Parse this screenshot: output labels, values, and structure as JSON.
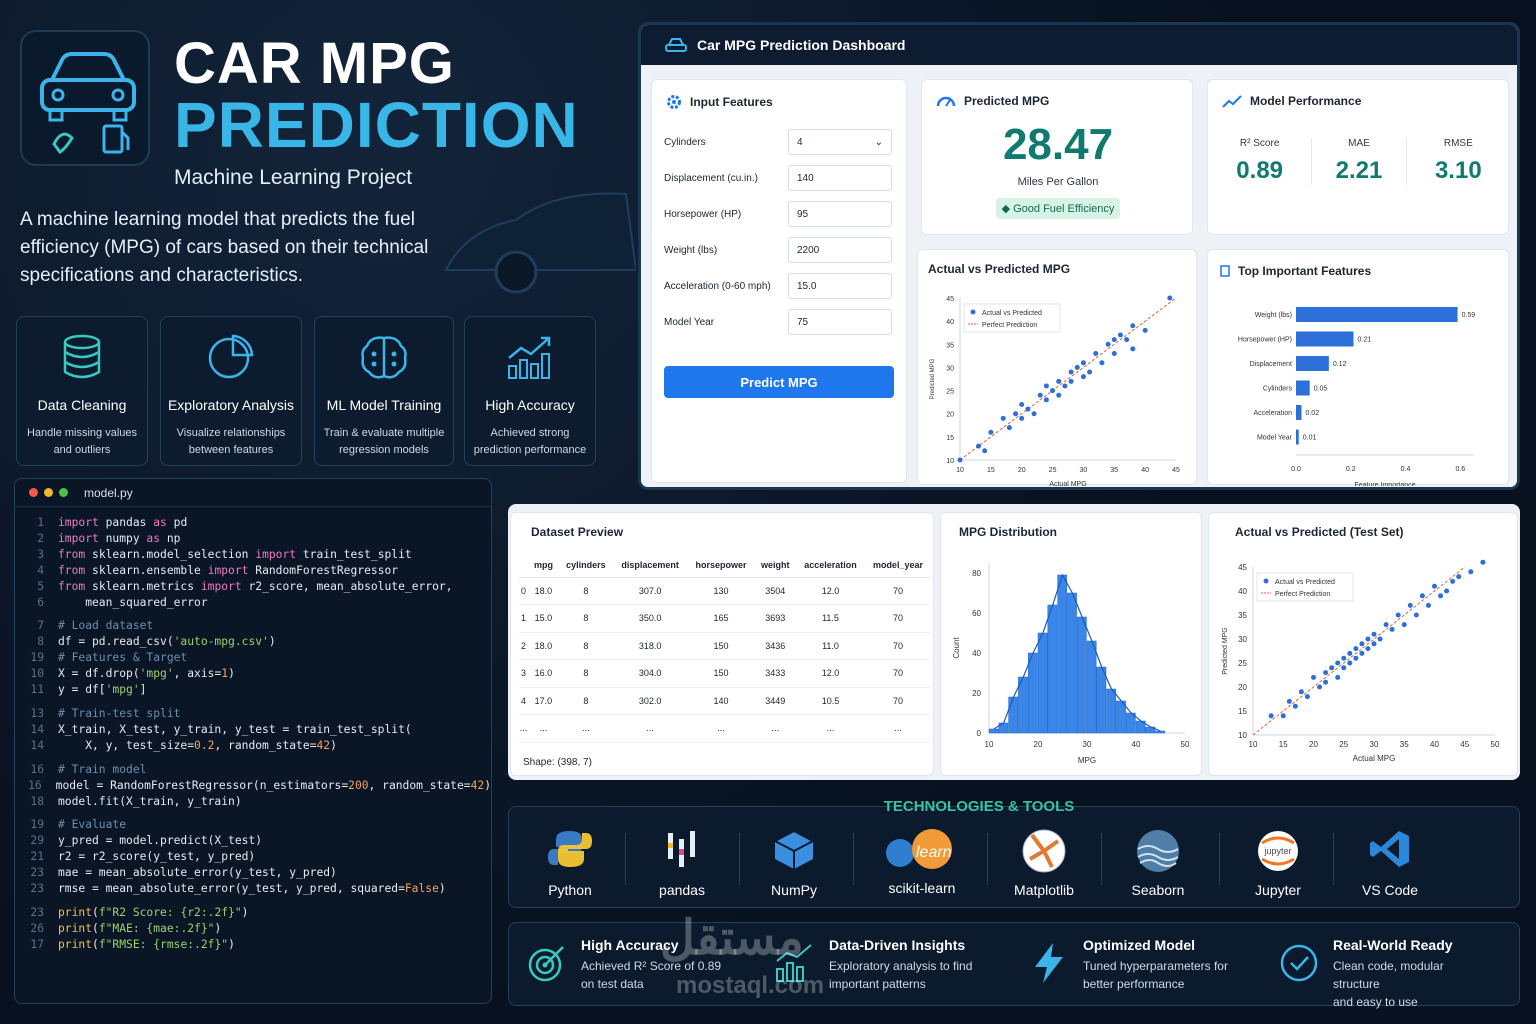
{
  "hero": {
    "title_line1": "CAR MPG",
    "title_line2": "PREDICTION",
    "subtitle": "Machine Learning Project",
    "description": "A machine learning model that predicts the fuel efficiency (MPG) of cars based on their technical specifications and characteristics."
  },
  "features": [
    {
      "icon": "database-icon",
      "title": "Data Cleaning",
      "desc1": "Handle missing values",
      "desc2": "and outliers"
    },
    {
      "icon": "pie-chart-icon",
      "title": "Exploratory Analysis",
      "desc1": "Visualize relationships",
      "desc2": "between features"
    },
    {
      "icon": "brain-icon",
      "title": "ML Model Training",
      "desc1": "Train & evaluate multiple",
      "desc2": "regression models"
    },
    {
      "icon": "growth-chart-icon",
      "title": "High Accuracy",
      "desc1": "Achieved strong",
      "desc2": "prediction performance"
    }
  ],
  "code": {
    "filename": "model.py"
  },
  "dashboard": {
    "title": "Car MPG Prediction Dashboard",
    "input": {
      "title": "Input Features",
      "fields": [
        {
          "label": "Cylinders",
          "value": "4"
        },
        {
          "label": "Displacement (cu.in.)",
          "value": "140"
        },
        {
          "label": "Horsepower (HP)",
          "value": "95"
        },
        {
          "label": "Weight (lbs)",
          "value": "2200"
        },
        {
          "label": "Acceleration (0-60 mph)",
          "value": "15.0"
        },
        {
          "label": "Model Year",
          "value": "75"
        }
      ],
      "button": "Predict MPG"
    },
    "predicted": {
      "title": "Predicted MPG",
      "value": "28.47",
      "unit": "Miles Per Gallon",
      "badge": "Good Fuel Efficiency"
    },
    "performance": {
      "title": "Model Performance",
      "metrics": [
        {
          "k": "R² Score",
          "v": "0.89"
        },
        {
          "k": "MAE",
          "v": "2.21"
        },
        {
          "k": "RMSE",
          "v": "3.10"
        }
      ]
    },
    "scatter_title": "Actual vs Predicted MPG",
    "features_title": "Top Important Features"
  },
  "dataset": {
    "title": "Dataset Preview",
    "columns": [
      "",
      "mpg",
      "cylinders",
      "displacement",
      "horsepower",
      "weight",
      "acceleration",
      "model_year"
    ],
    "rows": [
      [
        "0",
        "18.0",
        "8",
        "307.0",
        "130",
        "3504",
        "12.0",
        "70"
      ],
      [
        "1",
        "15.0",
        "8",
        "350.0",
        "165",
        "3693",
        "11.5",
        "70"
      ],
      [
        "2",
        "18.0",
        "8",
        "318.0",
        "150",
        "3436",
        "11.0",
        "70"
      ],
      [
        "3",
        "16.0",
        "8",
        "304.0",
        "150",
        "3433",
        "12.0",
        "70"
      ],
      [
        "4",
        "17.0",
        "8",
        "302.0",
        "140",
        "3449",
        "10.5",
        "70"
      ],
      [
        "...",
        "...",
        "...",
        "...",
        "...",
        "...",
        "...",
        "..."
      ]
    ],
    "shape": "Shape: (398, 7)"
  },
  "dist_title": "MPG Distribution",
  "test_title": "Actual vs Predicted (Test Set)",
  "tech": {
    "title": "TECHNOLOGIES & TOOLS",
    "items": [
      "Python",
      "pandas",
      "NumPy",
      "scikit-learn",
      "Matplotlib",
      "Seaborn",
      "Jupyter",
      "VS Code"
    ],
    "jupyter_word": "jupyter",
    "learn_word": "learn"
  },
  "highlights": [
    {
      "icon": "target-icon",
      "title": "High Accuracy",
      "d1": "Achieved R² Score of 0.89",
      "d2": "on test data"
    },
    {
      "icon": "chart-icon",
      "title": "Data-Driven Insights",
      "d1": "Exploratory analysis to find",
      "d2": "important patterns"
    },
    {
      "icon": "lightning-icon",
      "title": "Optimized Model",
      "d1": "Tuned hyperparameters for",
      "d2": "better performance"
    },
    {
      "icon": "check-circle-icon",
      "title": "Real-World Ready",
      "d1": "Clean code, modular structure",
      "d2": "and easy to use"
    }
  ],
  "watermark": {
    "arabic": "مستقل",
    "latin": "mostaql.com"
  },
  "chart_data": [
    {
      "type": "scatter",
      "title": "Actual vs Predicted MPG",
      "xlabel": "Actual MPG",
      "ylabel": "Predicted MPG",
      "xlim": [
        10,
        45
      ],
      "ylim": [
        10,
        45
      ],
      "xticks": [
        "10",
        "15",
        "20",
        "25",
        "30",
        "35",
        "40",
        "45"
      ],
      "yticks": [
        "10",
        "15",
        "20",
        "25",
        "30",
        "35",
        "40",
        "45"
      ],
      "legend": [
        "Actual vs Predicted",
        "Perfect Prediction"
      ],
      "points": [
        [
          10,
          10
        ],
        [
          13,
          13
        ],
        [
          14,
          12
        ],
        [
          15,
          16
        ],
        [
          17,
          19
        ],
        [
          18,
          17
        ],
        [
          19,
          20
        ],
        [
          20,
          19
        ],
        [
          20,
          22
        ],
        [
          21,
          21
        ],
        [
          22,
          20
        ],
        [
          23,
          24
        ],
        [
          24,
          23
        ],
        [
          24,
          26
        ],
        [
          25,
          25
        ],
        [
          26,
          24
        ],
        [
          26,
          27
        ],
        [
          27,
          26
        ],
        [
          28,
          29
        ],
        [
          28,
          27
        ],
        [
          29,
          30
        ],
        [
          30,
          28
        ],
        [
          30,
          31
        ],
        [
          31,
          29
        ],
        [
          32,
          33
        ],
        [
          33,
          31
        ],
        [
          34,
          35
        ],
        [
          35,
          33
        ],
        [
          35,
          36
        ],
        [
          36,
          37
        ],
        [
          37,
          36
        ],
        [
          38,
          34
        ],
        [
          38,
          39
        ],
        [
          40,
          38
        ],
        [
          44,
          45
        ]
      ]
    },
    {
      "type": "bar",
      "title": "Top Important Features",
      "xlabel": "Feature Importance",
      "orientation": "horizontal",
      "categories": [
        "Weight (lbs)",
        "Horsepower (HP)",
        "Displacement",
        "Cylinders",
        "Acceleration",
        "Model Year"
      ],
      "values": [
        0.59,
        0.21,
        0.12,
        0.05,
        0.02,
        0.01
      ],
      "labels": [
        "0.59",
        "0.21",
        "0.12",
        "0.05",
        "0.02",
        "0.01"
      ],
      "xticks": [
        "0.0",
        "0.2",
        "0.4",
        "0.6"
      ],
      "xlim": [
        0,
        0.65
      ]
    },
    {
      "type": "bar",
      "title": "MPG Distribution",
      "xlabel": "MPG",
      "ylabel": "Count",
      "xlim": [
        10,
        50
      ],
      "ylim": [
        0,
        85
      ],
      "xticks": [
        "10",
        "20",
        "30",
        "40",
        "50"
      ],
      "yticks": [
        "0",
        "20",
        "40",
        "60",
        "80"
      ],
      "bins": [
        [
          10,
          12
        ],
        [
          12,
          14
        ],
        [
          14,
          16
        ],
        [
          16,
          18
        ],
        [
          18,
          20
        ],
        [
          20,
          22
        ],
        [
          22,
          24
        ],
        [
          24,
          26
        ],
        [
          26,
          28
        ],
        [
          28,
          30
        ],
        [
          30,
          32
        ],
        [
          32,
          34
        ],
        [
          34,
          36
        ],
        [
          36,
          38
        ],
        [
          38,
          40
        ],
        [
          40,
          42
        ],
        [
          42,
          44
        ],
        [
          44,
          46
        ]
      ],
      "values": [
        2,
        5,
        18,
        28,
        40,
        50,
        64,
        79,
        70,
        58,
        46,
        33,
        22,
        16,
        10,
        6,
        3,
        1
      ]
    },
    {
      "type": "scatter",
      "title": "Actual vs Predicted (Test Set)",
      "xlabel": "Actual MPG",
      "ylabel": "Predicted MPG",
      "xlim": [
        10,
        50
      ],
      "ylim": [
        10,
        45
      ],
      "xticks": [
        "10",
        "15",
        "20",
        "25",
        "30",
        "35",
        "40",
        "45",
        "50"
      ],
      "yticks": [
        "10",
        "15",
        "20",
        "25",
        "30",
        "35",
        "40",
        "45"
      ],
      "legend": [
        "Actual vs Predicted",
        "Perfect Prediction"
      ],
      "points": [
        [
          13,
          14
        ],
        [
          15,
          14
        ],
        [
          16,
          17
        ],
        [
          17,
          16
        ],
        [
          18,
          19
        ],
        [
          19,
          18
        ],
        [
          20,
          22
        ],
        [
          21,
          20
        ],
        [
          22,
          23
        ],
        [
          22,
          21
        ],
        [
          23,
          24
        ],
        [
          24,
          22
        ],
        [
          24,
          25
        ],
        [
          25,
          26
        ],
        [
          25,
          24
        ],
        [
          26,
          27
        ],
        [
          26,
          25
        ],
        [
          27,
          28
        ],
        [
          27,
          26
        ],
        [
          28,
          29
        ],
        [
          28,
          27
        ],
        [
          29,
          30
        ],
        [
          29,
          28
        ],
        [
          30,
          31
        ],
        [
          30,
          29
        ],
        [
          31,
          30
        ],
        [
          32,
          33
        ],
        [
          33,
          32
        ],
        [
          34,
          35
        ],
        [
          35,
          33
        ],
        [
          36,
          37
        ],
        [
          37,
          35
        ],
        [
          38,
          39
        ],
        [
          39,
          37
        ],
        [
          40,
          41
        ],
        [
          41,
          39
        ],
        [
          42,
          40
        ],
        [
          43,
          42
        ],
        [
          44,
          43
        ],
        [
          46,
          44
        ],
        [
          48,
          46
        ]
      ]
    }
  ]
}
